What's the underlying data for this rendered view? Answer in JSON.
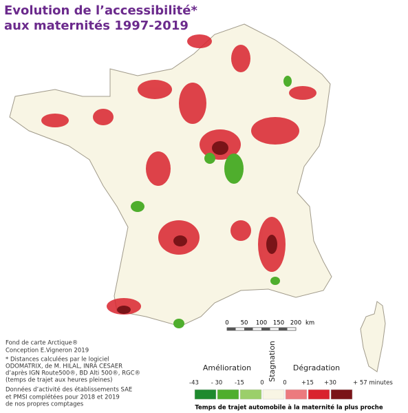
{
  "title": [
    "Evolution de l’accessibilité*",
    "aux maternités 1997-2019"
  ],
  "scale_bar": {
    "ticks": [
      "0",
      "50",
      "100",
      "150",
      "200"
    ],
    "unit": "km"
  },
  "credits": [
    "Fond de carte Arctique®",
    "Conception E.Vigneron 2019",
    "* Distances calculées par le logiciel",
    "ODOMATRIX, de M. HILAL, INRA CESAER",
    "d’après IGN Route500®, BD Alti 500®, RGC®",
    "(temps de trajet aux heures pleines)",
    "Données d’activité des établissements SAE",
    "et PMSI complétées pour 2018 et 2019",
    "de nos propres comptages"
  ],
  "legend": {
    "improvement": "Amélioration",
    "stagnation": "Stagnation",
    "degradation": "Dégradation",
    "labels": [
      "-43",
      "- 30",
      "-15",
      "0",
      "0",
      "+15",
      "+30",
      "+ 57 minutes"
    ],
    "colors": [
      "#1e8a2e",
      "#4fae2d",
      "#9bcf6a",
      "#f8f5e4",
      "#ec7a7e",
      "#d9232e",
      "#7a1418"
    ],
    "caption": "Temps de trajet automobile à la maternité la plus proche"
  }
}
